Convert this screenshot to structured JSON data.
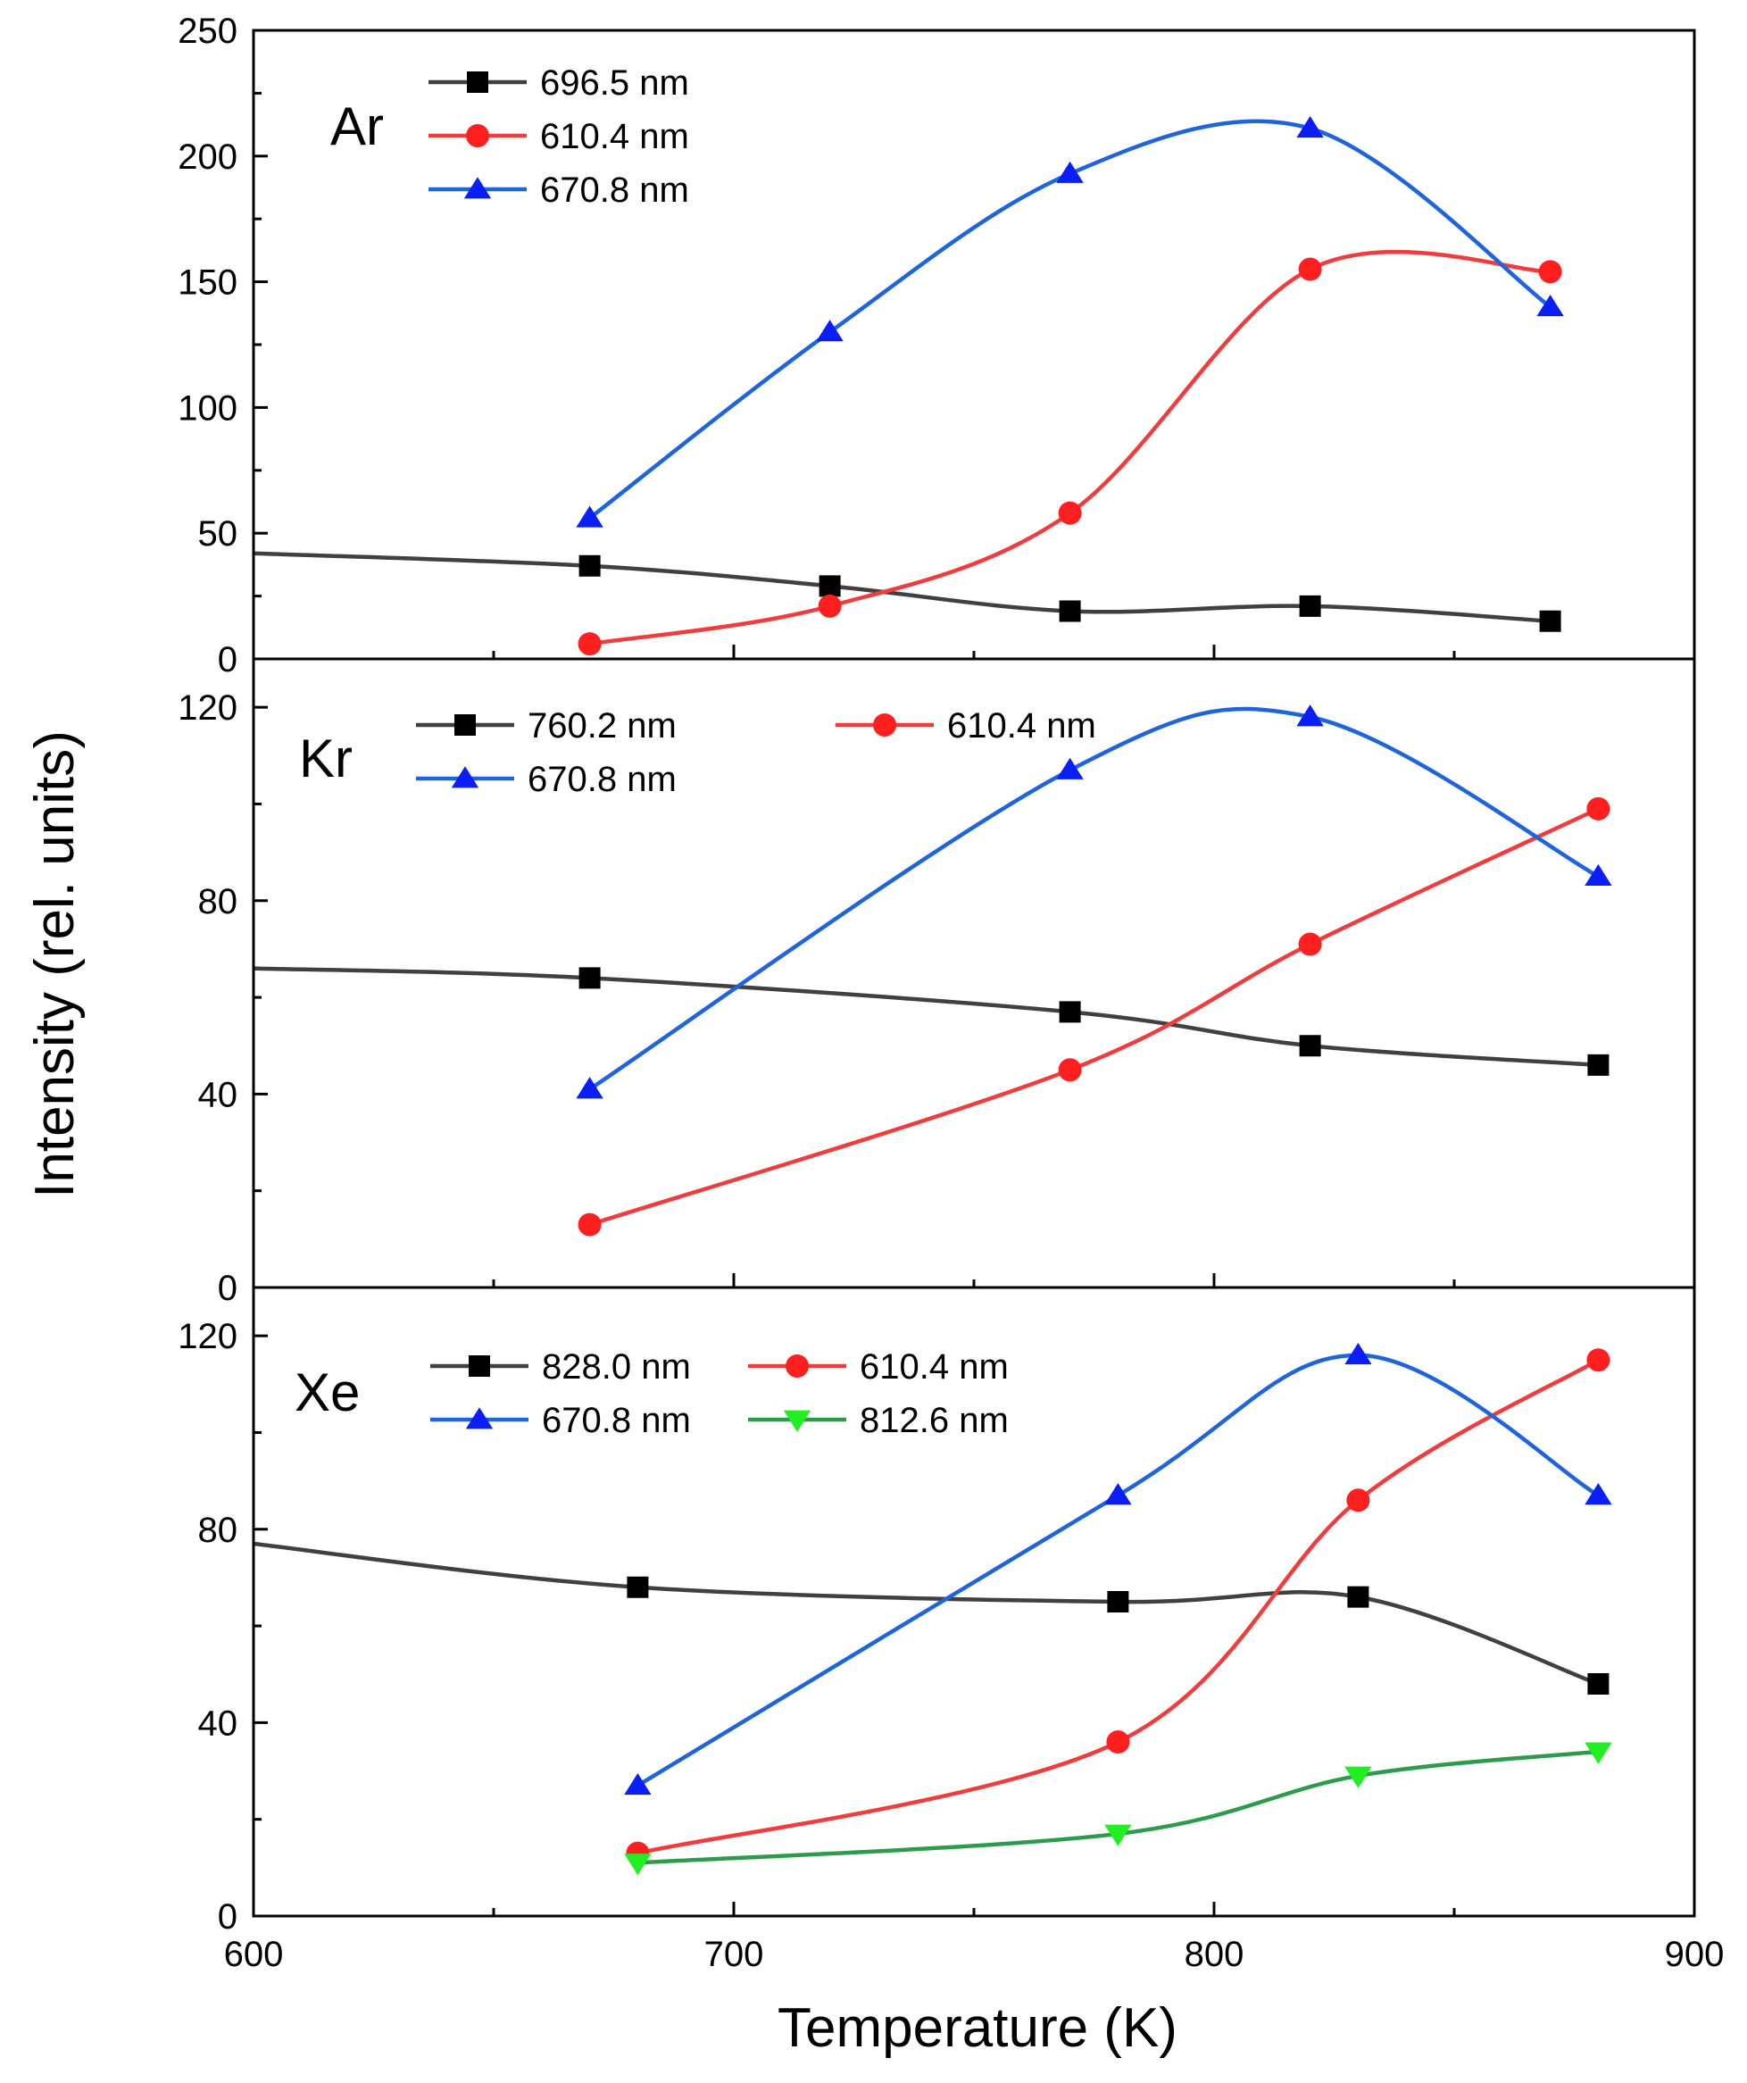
{
  "figure": {
    "xlabel": "Temperature (K)",
    "ylabel": "Intensity (rel. units)"
  },
  "chart_data": [
    {
      "type": "line",
      "panel_label": "Ar",
      "xlabel": "Temperature (K)",
      "ylabel": "Intensity (rel. units)",
      "xlim": [
        600,
        900
      ],
      "ylim": [
        0,
        250
      ],
      "xticks": [
        600,
        700,
        800,
        900
      ],
      "yticks": [
        0,
        50,
        100,
        150,
        200,
        250
      ],
      "legend_position": "top-left",
      "grid": false,
      "series": [
        {
          "name": "696.5 nm",
          "color": "#000000",
          "line_color": "#404040",
          "marker": "square",
          "x": [
            670,
            720,
            770,
            820,
            870
          ],
          "y": [
            37,
            29,
            19,
            21,
            15
          ],
          "curve_extension": {
            "x": 600,
            "y": 42
          }
        },
        {
          "name": "610.4 nm",
          "color": "#ff1f1f",
          "line_color": "#f03c3c",
          "marker": "circle",
          "x": [
            670,
            720,
            770,
            820,
            870
          ],
          "y": [
            6,
            21,
            58,
            155,
            154
          ]
        },
        {
          "name": "670.8 nm",
          "color": "#0a1ef5",
          "line_color": "#1e64dc",
          "marker": "triangle-up",
          "x": [
            670,
            720,
            770,
            820,
            870
          ],
          "y": [
            56,
            130,
            193,
            211,
            140
          ]
        }
      ]
    },
    {
      "type": "line",
      "panel_label": "Kr",
      "xlabel": "Temperature (K)",
      "ylabel": "Intensity (rel. units)",
      "xlim": [
        600,
        900
      ],
      "ylim": [
        0,
        130
      ],
      "xticks": [
        600,
        700,
        800,
        900
      ],
      "yticks": [
        0,
        40,
        80,
        120
      ],
      "legend_position": "top-left",
      "grid": false,
      "series": [
        {
          "name": "760.2 nm",
          "color": "#000000",
          "line_color": "#404040",
          "marker": "square",
          "x": [
            670,
            770,
            820,
            880
          ],
          "y": [
            64,
            57,
            50,
            46
          ],
          "curve_extension": {
            "x": 600,
            "y": 66
          }
        },
        {
          "name": "610.4 nm",
          "color": "#ff1f1f",
          "line_color": "#f03c3c",
          "marker": "circle",
          "x": [
            670,
            770,
            820,
            880
          ],
          "y": [
            13,
            45,
            71,
            99
          ]
        },
        {
          "name": "670.8 nm",
          "color": "#0a1ef5",
          "line_color": "#1e64dc",
          "marker": "triangle-up",
          "x": [
            670,
            770,
            820,
            880
          ],
          "y": [
            41,
            107,
            118,
            85
          ]
        }
      ]
    },
    {
      "type": "line",
      "panel_label": "Xe",
      "xlabel": "Temperature (K)",
      "ylabel": "Intensity (rel. units)",
      "xlim": [
        600,
        900
      ],
      "ylim": [
        0,
        130
      ],
      "xticks": [
        600,
        700,
        800,
        900
      ],
      "yticks": [
        0,
        40,
        80,
        120
      ],
      "legend_position": "top-left",
      "grid": false,
      "series": [
        {
          "name": "828.0 nm",
          "color": "#000000",
          "line_color": "#404040",
          "marker": "square",
          "x": [
            680,
            780,
            830,
            880
          ],
          "y": [
            68,
            65,
            66,
            48
          ],
          "curve_extension": {
            "x": 600,
            "y": 77
          }
        },
        {
          "name": "610.4 nm",
          "color": "#ff1f1f",
          "line_color": "#f03c3c",
          "marker": "circle",
          "x": [
            680,
            780,
            830,
            880
          ],
          "y": [
            13,
            36,
            86,
            115
          ]
        },
        {
          "name": "670.8 nm",
          "color": "#0a1ef5",
          "line_color": "#1e64dc",
          "marker": "triangle-up",
          "x": [
            680,
            780,
            830,
            880
          ],
          "y": [
            27,
            87,
            116,
            87
          ]
        },
        {
          "name": "812.6 nm",
          "color": "#22ee22",
          "line_color": "#2c9c4c",
          "marker": "triangle-down",
          "x": [
            680,
            780,
            830,
            880
          ],
          "y": [
            11,
            17,
            29,
            34
          ]
        }
      ]
    }
  ]
}
